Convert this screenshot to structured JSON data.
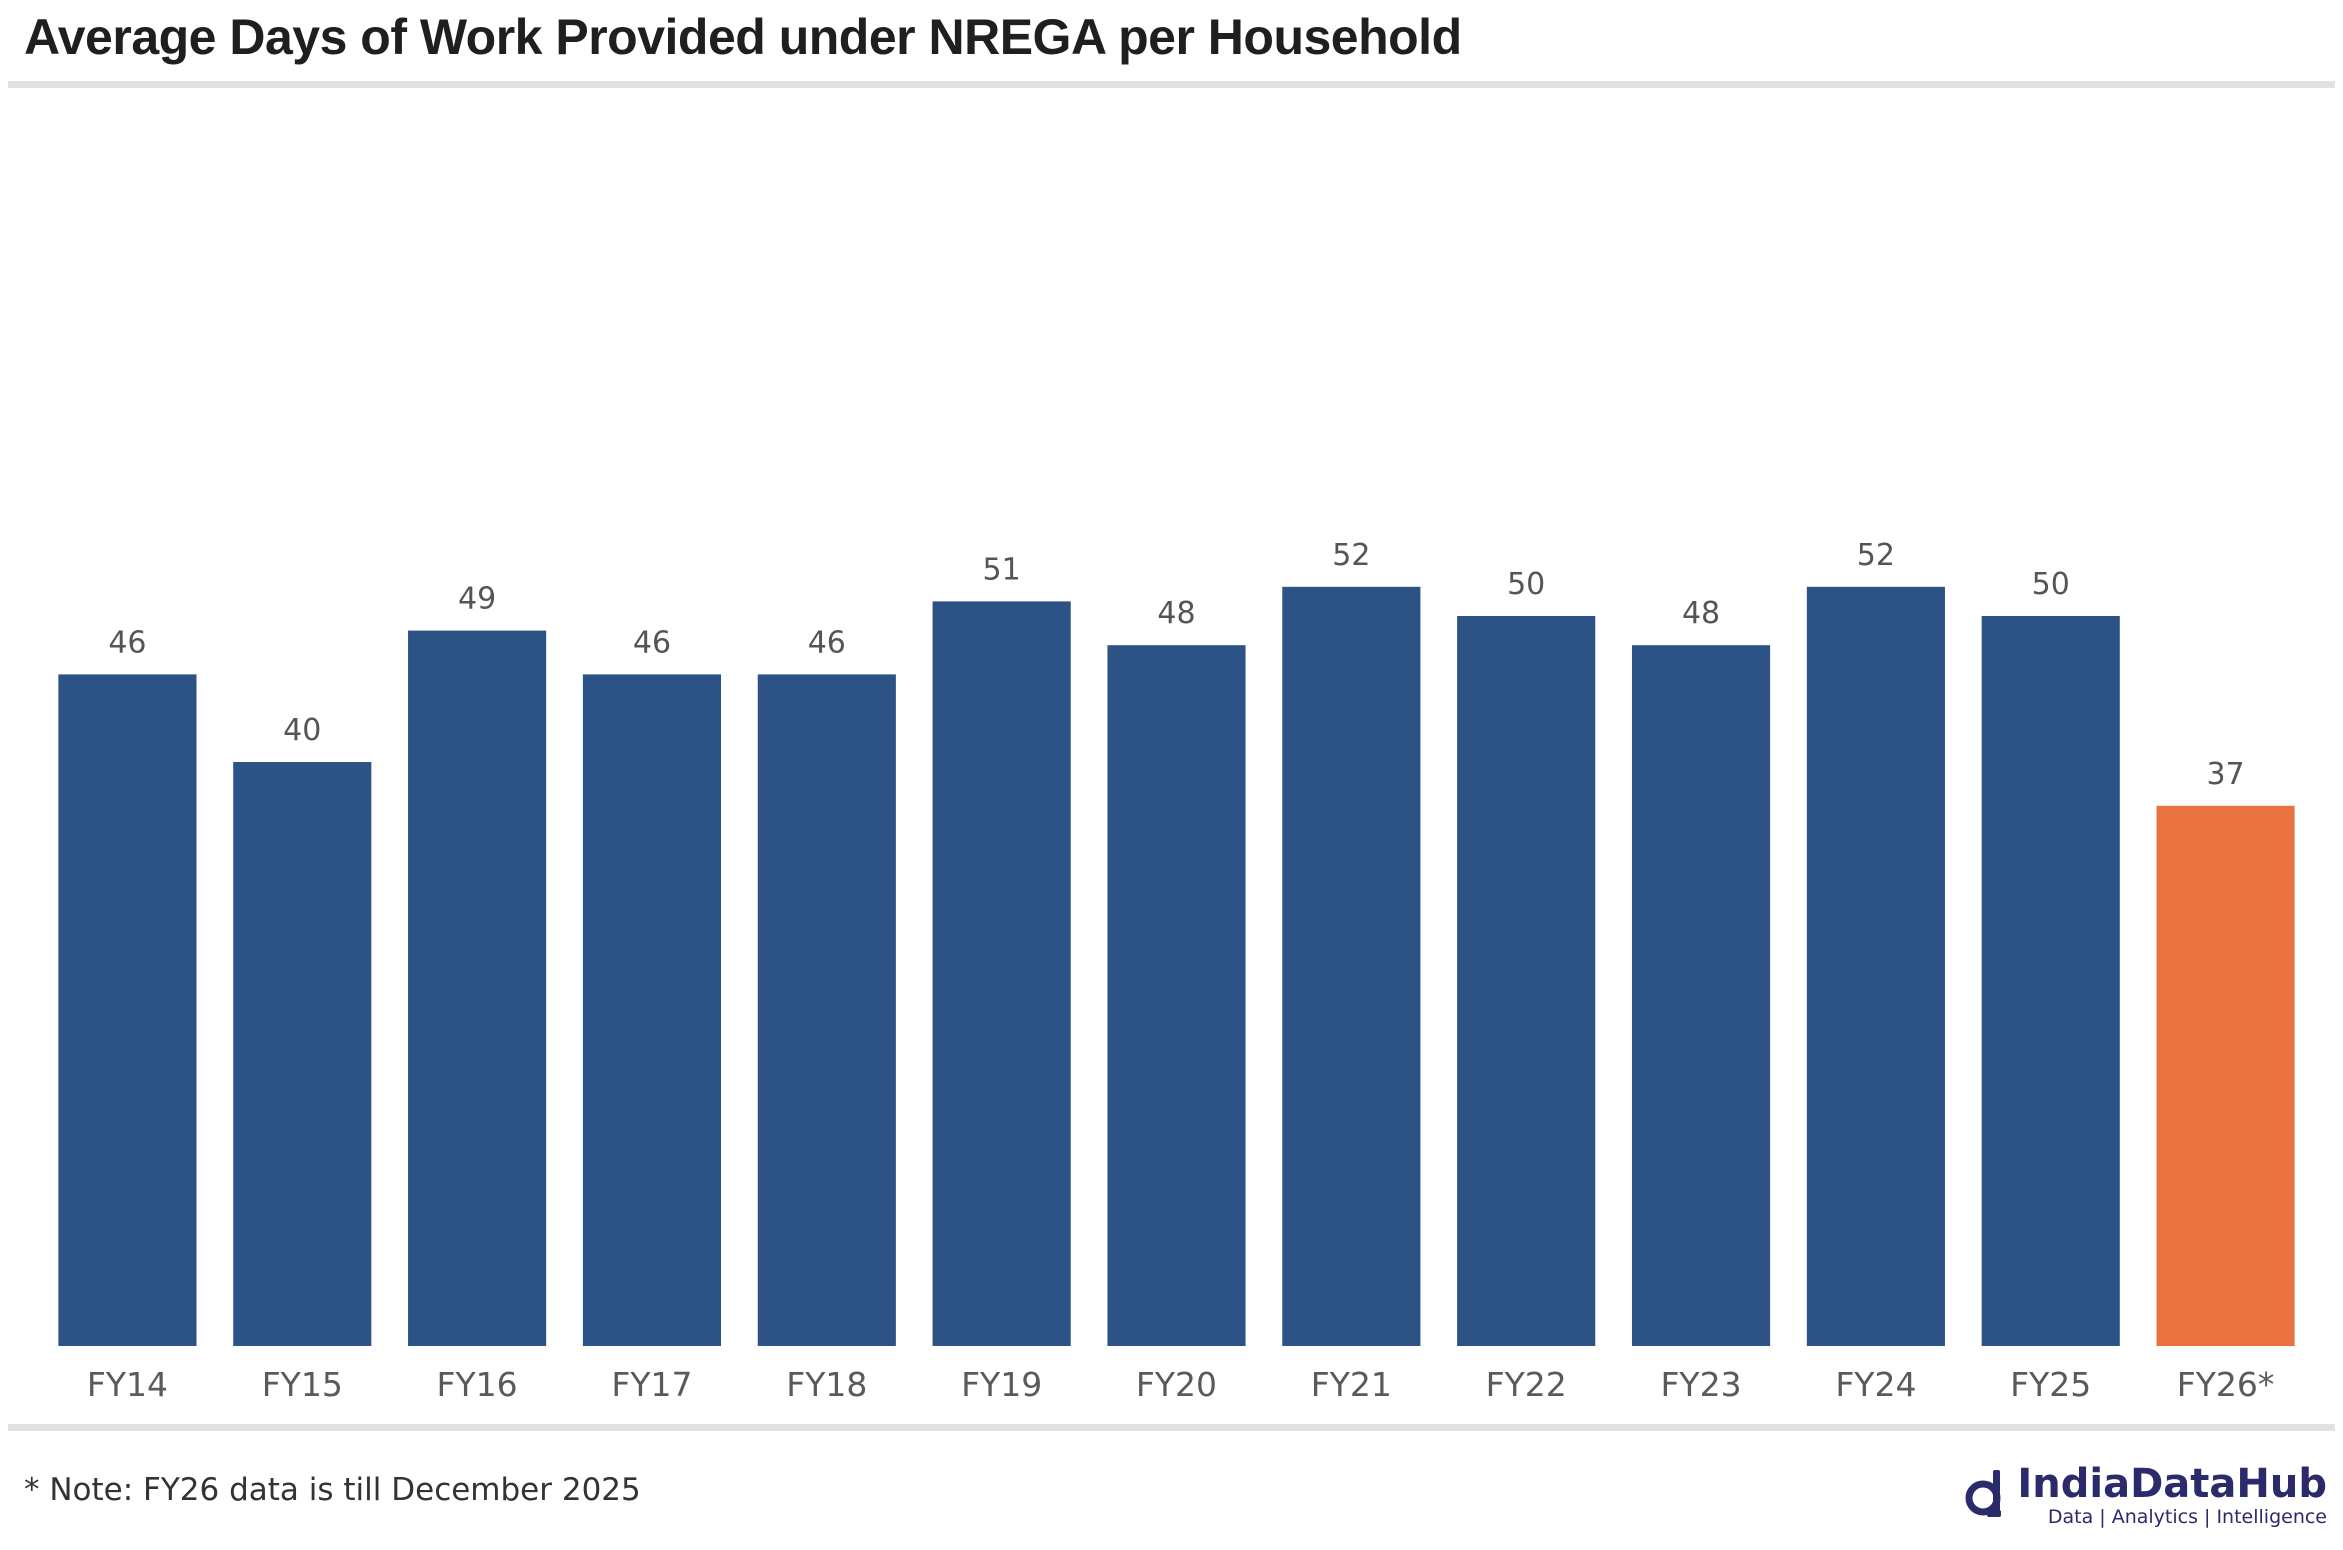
{
  "chart_data": {
    "type": "bar",
    "title": "Average Days of Work Provided under NREGA per Household",
    "categories": [
      "FY14",
      "FY15",
      "FY16",
      "FY17",
      "FY18",
      "FY19",
      "FY20",
      "FY21",
      "FY22",
      "FY23",
      "FY24",
      "FY25",
      "FY26*"
    ],
    "values": [
      46,
      40,
      49,
      46,
      46,
      51,
      48,
      52,
      50,
      48,
      52,
      50,
      37
    ],
    "data_labels": [
      "46",
      "40",
      "49",
      "46",
      "46",
      "51",
      "48",
      "52",
      "50",
      "48",
      "52",
      "50",
      "37"
    ],
    "highlight_index": 12,
    "xlabel": "",
    "ylabel": "",
    "ylim": [
      0,
      60
    ],
    "grid": false,
    "legend": "none",
    "colors": {
      "bar": "#2d5386",
      "highlight": "#e87340"
    }
  },
  "footer": {
    "note": "* Note: FY26 data is till December 2025"
  },
  "logo": {
    "name": "IndiaDataHub",
    "tagline": "Data | Analytics | Intelligence"
  }
}
